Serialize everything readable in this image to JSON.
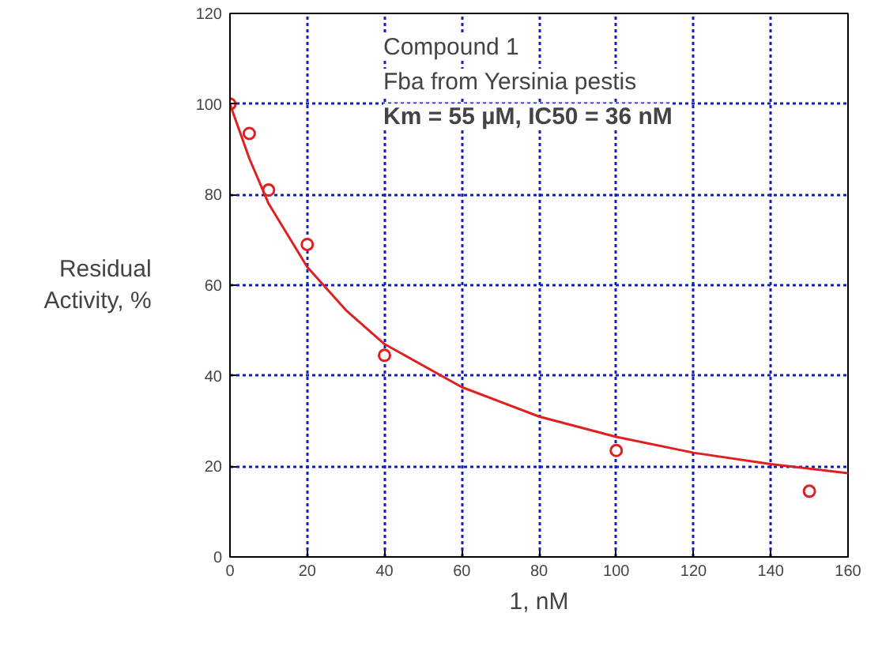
{
  "chart_data": {
    "type": "scatter",
    "xlabel": "1, nM",
    "ylabel": "Residual\nActivity, %",
    "annotations": [
      "Compound 1",
      "Fba from Yersinia pestis",
      "Km = 55 µM, IC50 = 36 nM"
    ],
    "xlim": [
      0,
      160
    ],
    "ylim": [
      0,
      120
    ],
    "xticks": [
      0,
      20,
      40,
      60,
      80,
      100,
      120,
      140,
      160
    ],
    "yticks": [
      0,
      20,
      40,
      60,
      80,
      100,
      120
    ],
    "grid": true,
    "series": [
      {
        "marker": "circle",
        "color": "#e02020",
        "x": [
          0,
          5,
          10,
          20,
          40,
          100,
          150
        ],
        "values": [
          100,
          93.5,
          81,
          69,
          44.5,
          23.5,
          14.5
        ]
      },
      {
        "type": "line",
        "marker": "none",
        "line_style": "solid",
        "color": "#e02020",
        "x": [
          0,
          5,
          10,
          20,
          30,
          40,
          60,
          80,
          100,
          120,
          140,
          160
        ],
        "values": [
          100,
          88,
          78,
          64,
          54.5,
          47,
          37.5,
          31,
          26.5,
          23,
          20.5,
          18.5
        ]
      }
    ]
  }
}
